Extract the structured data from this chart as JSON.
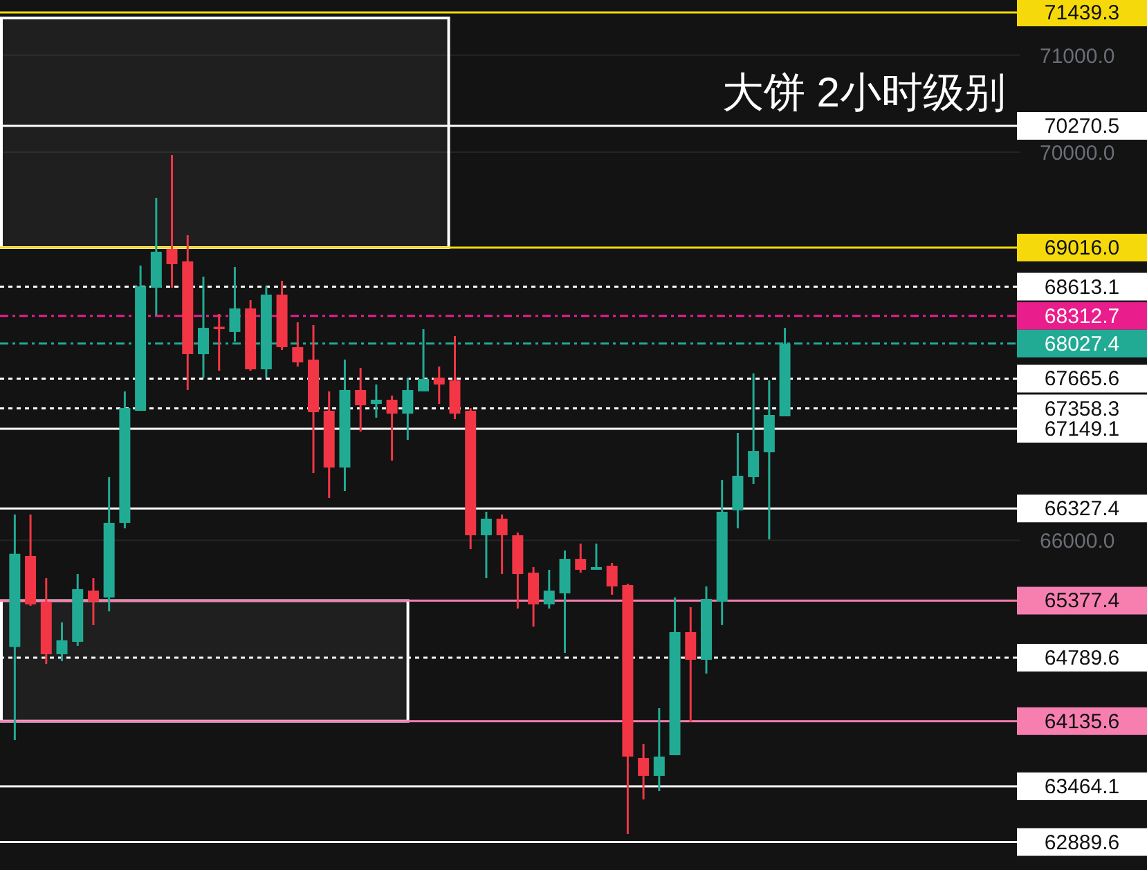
{
  "chart_data": {
    "type": "candlestick",
    "title": "大饼  2小时级别",
    "categories": [
      null,
      null,
      null,
      null,
      null,
      null,
      null,
      null,
      null,
      null,
      null,
      null,
      null,
      null,
      null,
      null,
      null,
      null,
      null,
      null,
      null,
      null,
      null,
      null,
      null,
      null,
      null,
      null,
      null,
      null,
      null,
      null,
      null,
      null,
      null,
      null,
      null,
      null,
      null,
      null,
      null,
      null,
      null,
      null,
      null,
      null,
      null,
      null,
      null,
      null,
      null,
      null,
      null,
      null,
      null,
      null,
      null,
      null,
      null,
      null,
      null,
      null,
      null,
      null
    ],
    "ohlc": [
      [
        64900,
        66265,
        63941,
        65860
      ],
      [
        65837,
        66265,
        65324,
        65338
      ],
      [
        65367,
        65609,
        64725,
        64825
      ],
      [
        64825,
        65153,
        64754,
        64968
      ],
      [
        64953,
        65652,
        64911,
        65495
      ],
      [
        65481,
        65609,
        65124,
        65367
      ],
      [
        65410,
        66650,
        65267,
        66179
      ],
      [
        66179,
        67534,
        66122,
        67362
      ],
      [
        67334,
        68831,
        67334,
        68617
      ],
      [
        68603,
        69529,
        68318,
        68973
      ],
      [
        69002,
        69971,
        68603,
        68845
      ],
      [
        68873,
        69144,
        67548,
        67918
      ],
      [
        67918,
        68717,
        67676,
        68189
      ],
      [
        68200,
        68332,
        67747,
        68175
      ],
      [
        68147,
        68816,
        68047,
        68389
      ],
      [
        68389,
        68474,
        67747,
        67762
      ],
      [
        67762,
        68617,
        67676,
        68531
      ],
      [
        68531,
        68674,
        67961,
        67990
      ],
      [
        67990,
        68246,
        67790,
        67833
      ],
      [
        67862,
        68218,
        66692,
        67320
      ],
      [
        67334,
        67534,
        66436,
        66749
      ],
      [
        66749,
        67862,
        66507,
        67548
      ],
      [
        67548,
        67776,
        67120,
        67391
      ],
      [
        67405,
        67605,
        67263,
        67448
      ],
      [
        67448,
        67491,
        66821,
        67305
      ],
      [
        67305,
        67676,
        67035,
        67548
      ],
      [
        67534,
        68175,
        67534,
        67662
      ],
      [
        67676,
        67790,
        67405,
        67605
      ],
      [
        67648,
        68104,
        67249,
        67305
      ],
      [
        67334,
        67362,
        65908,
        66051
      ],
      [
        66051,
        66294,
        65609,
        66222
      ],
      [
        66222,
        66265,
        65652,
        66051
      ],
      [
        66051,
        66079,
        65296,
        65652
      ],
      [
        65666,
        65723,
        65110,
        65339
      ],
      [
        65339,
        65695,
        65296,
        65481
      ],
      [
        65452,
        65894,
        64839,
        65808
      ],
      [
        65808,
        65965,
        65666,
        65695
      ],
      [
        65695,
        65965,
        65695,
        65723
      ],
      [
        65737,
        65766,
        65438,
        65524
      ],
      [
        65538,
        65552,
        62972,
        63770
      ],
      [
        63756,
        63898,
        63329,
        63571
      ],
      [
        63571,
        64269,
        63414,
        63770
      ],
      [
        63784,
        65410,
        63784,
        65053
      ],
      [
        65053,
        65310,
        64127,
        64768
      ],
      [
        64768,
        65524,
        64626,
        65395
      ],
      [
        65367,
        66621,
        65125,
        66294
      ],
      [
        66308,
        67106,
        66122,
        66664
      ],
      [
        66650,
        67719,
        66579,
        66920
      ],
      [
        66906,
        67648,
        66008,
        67291
      ],
      [
        67277,
        68189,
        67277,
        68027.4
      ],
      null,
      null,
      null,
      null,
      null,
      null,
      null,
      null,
      null,
      null,
      null,
      null,
      null,
      null
    ],
    "colors": [
      "#22ab94",
      "#f23645",
      "#f23645",
      "#22ab94",
      "#22ab94",
      "#f23645",
      "#22ab94",
      "#22ab94",
      "#22ab94",
      "#22ab94",
      "#f23645",
      "#f23645",
      "#22ab94",
      "#f23645",
      "#22ab94",
      "#f23645",
      "#22ab94",
      "#f23645",
      "#f23645",
      "#f23645",
      "#f23645",
      "#22ab94",
      "#f23645",
      "#22ab94",
      "#f23645",
      "#22ab94",
      "#22ab94",
      "#f23645",
      "#f23645",
      "#f23645",
      "#22ab94",
      "#f23645",
      "#f23645",
      "#f23645",
      "#22ab94",
      "#22ab94",
      "#f23645",
      "#22ab94",
      "#f23645",
      "#f23645",
      "#f23645",
      "#22ab94",
      "#22ab94",
      "#f23645",
      "#22ab94",
      "#22ab94",
      "#22ab94",
      "#22ab94",
      "#22ab94",
      "#22ab94",
      null,
      null,
      null,
      null,
      null,
      null,
      null,
      null,
      null,
      null,
      null,
      null,
      null,
      null
    ],
    "ylim": [
      62601,
      71568
    ],
    "yticks": [
      {
        "value": 66000,
        "label": "66000.0"
      },
      {
        "value": 70000,
        "label": "70000.0"
      },
      {
        "value": 71000,
        "label": "71000.0"
      }
    ],
    "tick_labels": "y",
    "grid": "y",
    "ref_lines": [
      {
        "axis": "y",
        "value": 71439.3,
        "label": "71439.3",
        "color": "#f5d90a",
        "line_style": "solid"
      },
      {
        "axis": "y",
        "value": 70270.5,
        "label": "70270.5",
        "color": "#ffffff",
        "line_style": "solid"
      },
      {
        "axis": "y",
        "value": 69016.0,
        "label": "69016.0",
        "color": "#f5d90a",
        "line_style": "solid"
      },
      {
        "axis": "y",
        "value": 68613.1,
        "label": "68613.1",
        "color": "#ffffff",
        "line_style": "dotted"
      },
      {
        "axis": "y",
        "value": 68312.7,
        "label": "68312.7",
        "color": "#e91e8c",
        "line_style": "dashed"
      },
      {
        "axis": "y",
        "value": 67149.1,
        "label": "67149.1",
        "color": "#ffffff",
        "line_style": "solid"
      },
      {
        "axis": "y",
        "value": 67358.3,
        "label": "67358.3",
        "color": "#ffffff",
        "line_style": "dotted"
      },
      {
        "axis": "y",
        "value": 67665.6,
        "label": "67665.6",
        "color": "#ffffff",
        "line_style": "dotted"
      },
      {
        "axis": "y",
        "value": 68027.4,
        "label": "68027.4",
        "color": "#22ab94",
        "line_style": "dashed"
      },
      {
        "axis": "y",
        "value": 66327.4,
        "label": "66327.4",
        "color": "#ffffff",
        "line_style": "solid"
      },
      {
        "axis": "y",
        "value": 65377.4,
        "label": "65377.4",
        "color": "#f77fb0",
        "line_style": "solid"
      },
      {
        "axis": "y",
        "value": 64789.6,
        "label": "64789.6",
        "color": "#ffffff",
        "line_style": "dotted"
      },
      {
        "axis": "y",
        "value": 64135.6,
        "label": "64135.6",
        "color": "#f77fb0",
        "line_style": "solid"
      },
      {
        "axis": "y",
        "value": 63464.1,
        "label": "63464.1",
        "color": "#ffffff",
        "line_style": "solid"
      },
      {
        "axis": "y",
        "value": 62889.6,
        "label": "62889.6",
        "color": "#ffffff",
        "line_style": "solid"
      }
    ],
    "bands": [
      {
        "axis": "y",
        "from": 69016.0,
        "to": 71382,
        "color": "#ffffff"
      },
      {
        "axis": "y",
        "from": 64135.6,
        "to": 65377.4,
        "color": "#ffffff"
      }
    ]
  }
}
